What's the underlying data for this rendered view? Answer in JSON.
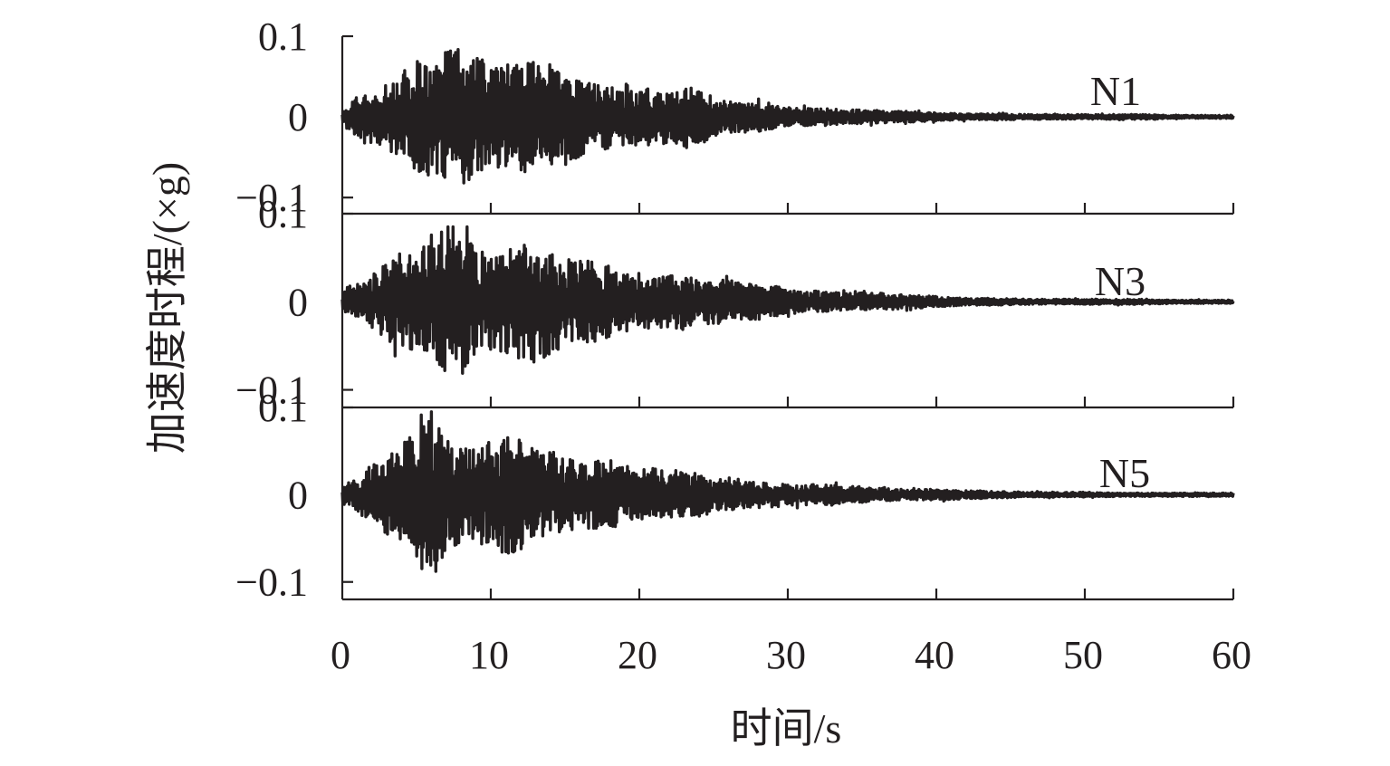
{
  "chart_data": {
    "type": "line",
    "xlabel": "时间/s",
    "ylabel": "加速度时程/(×g)",
    "x_ticks": [
      "0",
      "10",
      "20",
      "30",
      "40",
      "50",
      "60"
    ],
    "xlim": [
      0,
      60
    ],
    "panels": [
      {
        "name": "N1",
        "ylim": [
          -0.12,
          0.1
        ],
        "y_ticks": [
          "0.1",
          "0",
          "−0.1"
        ],
        "peak_abs": 0.092,
        "x": [
          0,
          1,
          2,
          3,
          4,
          5,
          6,
          7,
          8,
          9,
          10,
          11,
          12,
          13,
          14,
          15,
          16,
          17,
          18,
          19,
          20,
          21,
          22,
          23,
          24,
          25,
          26,
          27,
          28,
          29,
          30,
          32,
          34,
          36,
          38,
          40,
          42,
          44,
          46,
          48,
          50,
          52,
          54,
          56,
          58,
          60
        ],
        "envelope": [
          0.01,
          0.025,
          0.03,
          0.04,
          0.055,
          0.07,
          0.075,
          0.08,
          0.09,
          0.075,
          0.065,
          0.065,
          0.07,
          0.07,
          0.065,
          0.06,
          0.05,
          0.04,
          0.04,
          0.035,
          0.035,
          0.035,
          0.035,
          0.04,
          0.035,
          0.025,
          0.02,
          0.02,
          0.018,
          0.015,
          0.012,
          0.01,
          0.01,
          0.008,
          0.007,
          0.005,
          0.004,
          0.004,
          0.003,
          0.003,
          0.003,
          0.003,
          0.003,
          0.002,
          0.002,
          0.002
        ]
      },
      {
        "name": "N3",
        "ylim": [
          -0.12,
          0.1
        ],
        "y_ticks": [
          "0.1",
          "0",
          "−0.1"
        ],
        "peak_abs": 0.085,
        "x": [
          0,
          1,
          2,
          3,
          4,
          5,
          6,
          7,
          8,
          9,
          10,
          11,
          12,
          13,
          14,
          15,
          16,
          17,
          18,
          19,
          20,
          21,
          22,
          23,
          24,
          25,
          26,
          27,
          28,
          29,
          30,
          32,
          34,
          36,
          38,
          40,
          42,
          44,
          46,
          48,
          50,
          52,
          54,
          56,
          58,
          60
        ],
        "envelope": [
          0.01,
          0.02,
          0.03,
          0.045,
          0.05,
          0.06,
          0.065,
          0.085,
          0.08,
          0.06,
          0.06,
          0.06,
          0.065,
          0.07,
          0.06,
          0.05,
          0.05,
          0.045,
          0.04,
          0.035,
          0.03,
          0.03,
          0.03,
          0.03,
          0.025,
          0.025,
          0.025,
          0.02,
          0.02,
          0.018,
          0.015,
          0.012,
          0.01,
          0.01,
          0.008,
          0.006,
          0.004,
          0.004,
          0.003,
          0.003,
          0.003,
          0.003,
          0.003,
          0.002,
          0.002,
          0.002
        ]
      },
      {
        "name": "N5",
        "ylim": [
          -0.12,
          0.1
        ],
        "y_ticks": [
          "0.1",
          "0",
          "−0.1"
        ],
        "peak_abs": 0.095,
        "x": [
          0,
          1,
          2,
          3,
          4,
          5,
          6,
          7,
          8,
          9,
          10,
          11,
          12,
          13,
          14,
          15,
          16,
          17,
          18,
          19,
          20,
          21,
          22,
          23,
          24,
          25,
          26,
          27,
          28,
          29,
          30,
          32,
          34,
          36,
          38,
          40,
          42,
          44,
          46,
          48,
          50,
          52,
          54,
          56,
          58,
          60
        ],
        "envelope": [
          0.01,
          0.02,
          0.035,
          0.045,
          0.055,
          0.09,
          0.095,
          0.065,
          0.055,
          0.06,
          0.06,
          0.07,
          0.065,
          0.055,
          0.05,
          0.045,
          0.04,
          0.04,
          0.04,
          0.035,
          0.03,
          0.03,
          0.03,
          0.025,
          0.025,
          0.02,
          0.02,
          0.015,
          0.015,
          0.012,
          0.012,
          0.012,
          0.01,
          0.008,
          0.006,
          0.006,
          0.005,
          0.004,
          0.003,
          0.003,
          0.003,
          0.002,
          0.002,
          0.002,
          0.002,
          0.002
        ]
      }
    ],
    "grid": false,
    "line_color": "#231f20"
  }
}
